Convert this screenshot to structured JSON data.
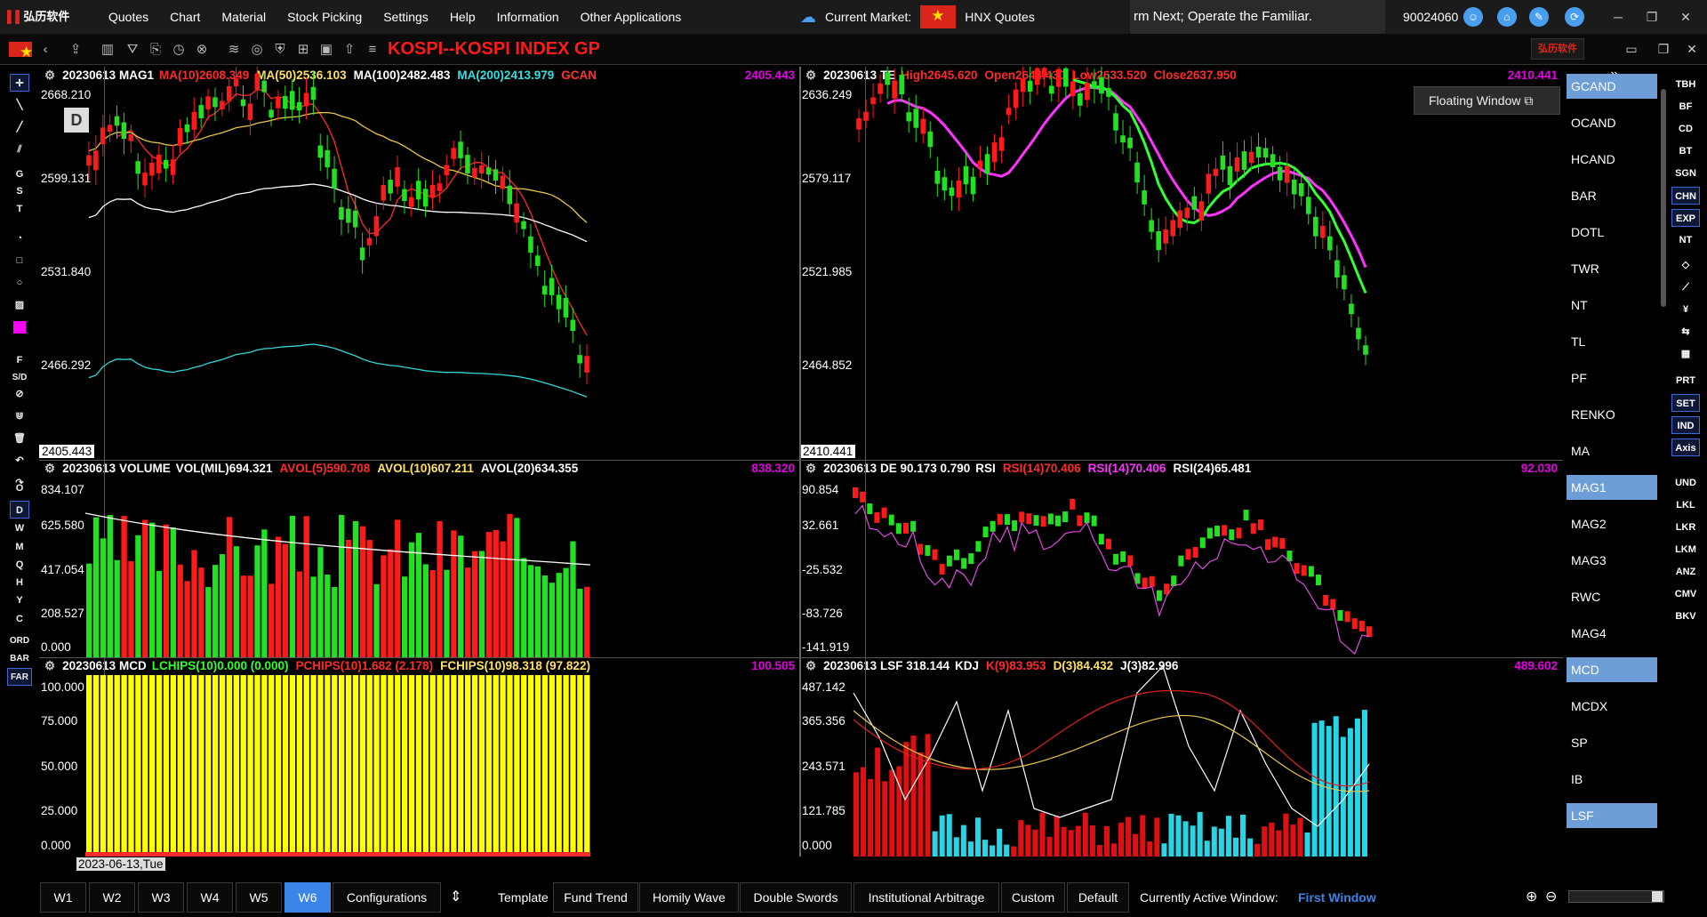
{
  "menubar": {
    "logo_text": "弘历软件",
    "items": [
      "Quotes",
      "Chart",
      "Material",
      "Stock Picking",
      "Settings",
      "Help",
      "Information",
      "Other Applications"
    ],
    "current_market_label": "Current Market:",
    "market_name": "HNX Quotes",
    "ticker_text": "rm Next; Operate the Familiar.",
    "user_id": "90024060"
  },
  "toolbar": {
    "title": "KOSPI--KOSPI INDEX  GP",
    "brand_text": "弘历软件"
  },
  "left_tools": [
    "G",
    "S",
    "T",
    "F",
    "S/D",
    "O",
    "D",
    "W",
    "M",
    "Q",
    "H",
    "Y",
    "C",
    "ORD",
    "BAR",
    "FAR"
  ],
  "panels": {
    "p1": {
      "date": "20230613",
      "name": "MAG1",
      "items": [
        {
          "text": "MA(10)2608.349",
          "color": "#ff2a2a"
        },
        {
          "text": "MA(50)2536.103",
          "color": "#ffe066"
        },
        {
          "text": "MA(100)2482.483",
          "color": "#ffffff"
        },
        {
          "text": "MA(200)2413.979",
          "color": "#33e0e0"
        },
        {
          "text": "GCAN",
          "color": "#ff3333"
        }
      ],
      "right_value": "2405.443",
      "yticks": [
        "2668.210",
        "2599.131",
        "2531.840",
        "2466.292"
      ],
      "last_box": "2405.443",
      "period_badge": "D"
    },
    "p2": {
      "date": "20230613",
      "name": "TE",
      "items": [
        {
          "text": "High2645.620",
          "color": "#ff2a2a"
        },
        {
          "text": "Open2644.430",
          "color": "#ff2a2a"
        },
        {
          "text": "Low2633.520",
          "color": "#ff2a2a"
        },
        {
          "text": "Close2637.950",
          "color": "#ff2a2a"
        }
      ],
      "right_value": "2410.441",
      "yticks": [
        "2636.249",
        "2579.117",
        "2521.985",
        "2464.852"
      ],
      "last_box": "2410.441"
    },
    "p3": {
      "date": "20230613",
      "name": "VOLUME",
      "items": [
        {
          "text": "VOL(MIL)694.321",
          "color": "#ffffff"
        },
        {
          "text": "AVOL(5)590.708",
          "color": "#ff2a2a"
        },
        {
          "text": "AVOL(10)607.211",
          "color": "#ffe066"
        },
        {
          "text": "AVOL(20)634.355",
          "color": "#ffffff"
        }
      ],
      "right_value": "838.320",
      "yticks": [
        "834.107",
        "625.580",
        "417.054",
        "208.527",
        "0.000"
      ]
    },
    "p4": {
      "date": "20230613",
      "name": "DE 90.173 0.790",
      "items": [
        {
          "text": "RSI",
          "color": "#ffffff"
        },
        {
          "text": "RSI(14)70.406",
          "color": "#ff2a2a"
        },
        {
          "text": "RSI(14)70.406",
          "color": "#ff33ff"
        },
        {
          "text": "RSI(24)65.481",
          "color": "#ffffff"
        }
      ],
      "right_value": "92.030",
      "yticks": [
        "90.854",
        "32.661",
        "-25.532",
        "-83.726",
        "-141.919"
      ]
    },
    "p5": {
      "date": "20230613",
      "name": "MCD",
      "items": [
        {
          "text": "LCHIPS(10)0.000 (0.000)",
          "color": "#33ff33"
        },
        {
          "text": "PCHIPS(10)1.682 (2.178)",
          "color": "#ff2a2a"
        },
        {
          "text": "FCHIPS(10)98.318 (97.822)",
          "color": "#ffe066"
        }
      ],
      "right_value": "100.505",
      "yticks": [
        "100.000",
        "75.000",
        "50.000",
        "25.000",
        "0.000"
      ]
    },
    "p6": {
      "date": "20230613",
      "name": "LSF 318.144",
      "items": [
        {
          "text": "KDJ",
          "color": "#ffffff"
        },
        {
          "text": "K(9)83.953",
          "color": "#ff2a2a"
        },
        {
          "text": "D(3)84.432",
          "color": "#ffe066"
        },
        {
          "text": "J(3)82.996",
          "color": "#ffffff"
        }
      ],
      "right_value": "489.602",
      "yticks": [
        "487.142",
        "365.356",
        "243.571",
        "121.785",
        "0.000"
      ]
    }
  },
  "floating_window": "Floating Window",
  "indicators": [
    "GCAND",
    "OCAND",
    "HCAND",
    "BAR",
    "DOTL",
    "TWR",
    "NT",
    "TL",
    "PF",
    "RENKO",
    "MA",
    "MAG1",
    "MAG2",
    "MAG3",
    "RWC",
    "MAG4",
    "MCD",
    "MCDX",
    "SP",
    "IB",
    "LSF"
  ],
  "selected_indicators": [
    "GCAND",
    "MAG1",
    "MCD",
    "LSF"
  ],
  "right_tools": [
    "TBH",
    "BF",
    "CD",
    "BT",
    "SGN",
    "CHN",
    "EXP",
    "NT",
    "PRT",
    "SET",
    "IND",
    "Axis",
    "UND",
    "LKL",
    "LKR",
    "LKM",
    "ANZ",
    "CMV",
    "BKV"
  ],
  "date_label": "2023-06-13,Tue",
  "bottom": {
    "window_tabs": [
      "W1",
      "W2",
      "W3",
      "W4",
      "W5",
      "W6"
    ],
    "selected_tab": "W6",
    "configurations": "Configurations",
    "template": "Template",
    "templates": [
      "Fund Trend",
      "Homily Wave",
      "Double Swords",
      "Institutional Arbitrage",
      "Custom",
      "Default"
    ],
    "active_label": "Currently Active Window:",
    "active_value": "First Window"
  },
  "colors": {
    "up": "#ff1a1a",
    "down": "#22e022",
    "accent": "#3a86e8",
    "magenta": "#e000e0"
  }
}
